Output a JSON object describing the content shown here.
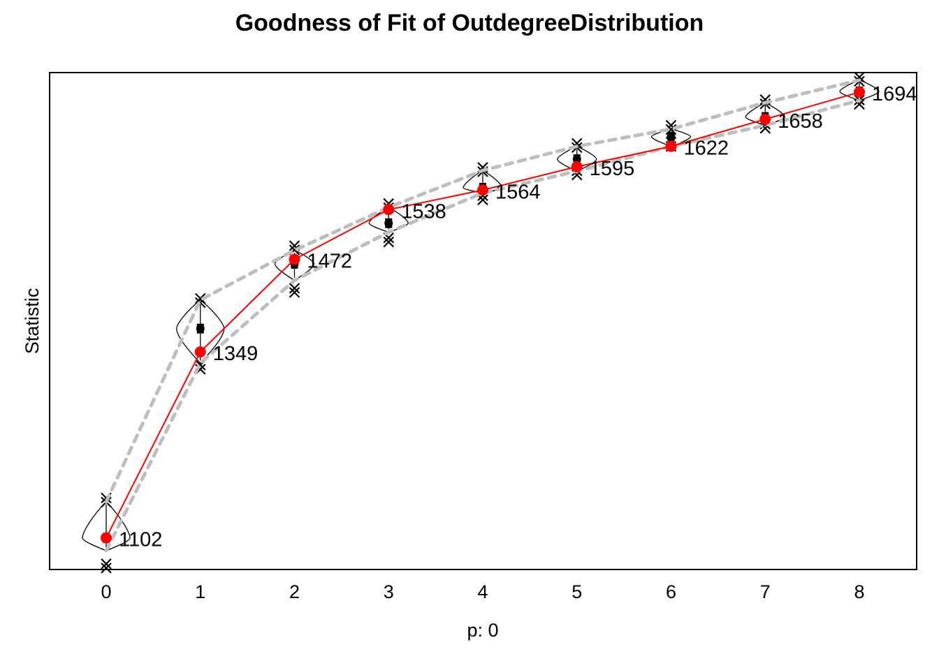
{
  "chart_data": {
    "type": "line",
    "title": "Goodness of Fit of OutdegreeDistribution",
    "xlabel": "p: 0",
    "ylabel": "Statistic",
    "x": [
      0,
      1,
      2,
      3,
      4,
      5,
      6,
      7,
      8
    ],
    "x_tick_labels": [
      "0",
      "1",
      "2",
      "3",
      "4",
      "5",
      "6",
      "7",
      "8"
    ],
    "ylim": [
      1060,
      1720
    ],
    "y_axis_ticks_shown": false,
    "grid": false,
    "legend": "none",
    "series": [
      {
        "role": "observed",
        "color": "#ff0000",
        "values": [
          1102,
          1349,
          1472,
          1538,
          1564,
          1595,
          1622,
          1658,
          1694
        ],
        "labels": [
          "1102",
          "1349",
          "1472",
          "1538",
          "1564",
          "1595",
          "1622",
          "1658",
          "1694"
        ]
      }
    ],
    "simulated": {
      "color": "#000000",
      "envelope_color": "#bebebe",
      "median": [
        1102,
        1380,
        1466,
        1520,
        1567,
        1605,
        1635,
        1661,
        1695
      ],
      "envelope_upper": [
        1150,
        1418,
        1484,
        1541,
        1590,
        1622,
        1645,
        1680,
        1710
      ],
      "envelope_lower": [
        1085,
        1334,
        1444,
        1508,
        1560,
        1589,
        1622,
        1650,
        1683
      ],
      "extremes_upper": [
        1155,
        1420,
        1490,
        1546,
        1594,
        1626,
        1650,
        1684,
        1714
      ],
      "extremes_lower": [
        1062,
        1326,
        1428,
        1495,
        1551,
        1584,
        1622,
        1646,
        1678
      ]
    }
  }
}
